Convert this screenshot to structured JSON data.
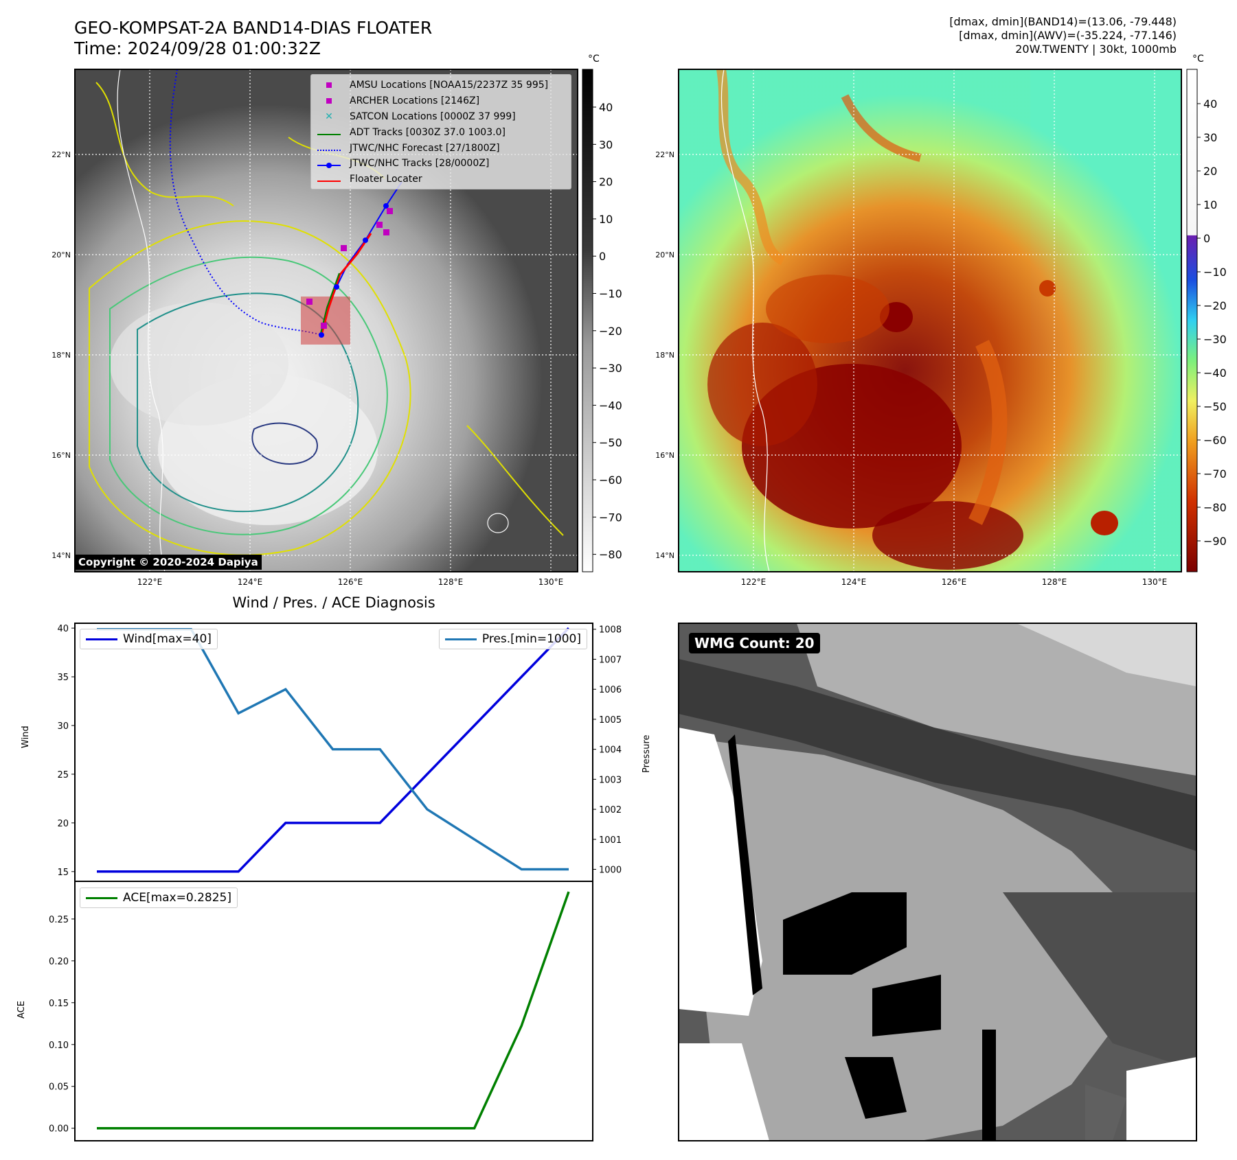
{
  "header": {
    "title_line1": "GEO-KOMPSAT-2A BAND14-DIAS FLOATER",
    "title_line2": "Time: 2024/09/28 01:00:32Z",
    "info_line1": "[dmax, dmin](BAND14)=(13.06, -79.448)",
    "info_line2": "[dmax, dmin](AWV)=(-35.224, -77.146)",
    "info_line3": "20W.TWENTY | 30kt, 1000mb"
  },
  "map_axes": {
    "lat_ticks": [
      "22°N",
      "20°N",
      "18°N",
      "16°N",
      "14°N"
    ],
    "lon_ticks": [
      "122°E",
      "124°E",
      "126°E",
      "128°E",
      "130°E"
    ]
  },
  "ir_panel": {
    "colorbar_unit": "°C",
    "colorbar_ticks": [
      "40",
      "30",
      "20",
      "10",
      "0",
      "−10",
      "−20",
      "−30",
      "−40",
      "−50",
      "−60",
      "−70",
      "−80"
    ],
    "copyright": "Copyright © 2020-2024 Dapiya",
    "legend": [
      {
        "label": "AMSU Locations [NOAA15/2237Z 35 995]",
        "color": "#c000c0",
        "marker": "square"
      },
      {
        "label": "ARCHER Locations [2146Z]",
        "color": "#c000c0",
        "marker": "square"
      },
      {
        "label": "SATCON Locations [0000Z 37 999]",
        "color": "#20b0b0",
        "marker": "x"
      },
      {
        "label": "ADT Tracks [0030Z 37.0 1003.0]",
        "color": "#008000",
        "marker": "line"
      },
      {
        "label": "JTWC/NHC Forecast [27/1800Z]",
        "color": "#0000ff",
        "marker": "dotted"
      },
      {
        "label": "JTWC/NHC Tracks [28/0000Z]",
        "color": "#0000ff",
        "marker": "line-dot"
      },
      {
        "label": "Floater Locater",
        "color": "#ff0000",
        "marker": "line"
      }
    ]
  },
  "awv_panel": {
    "colorbar_unit": "°C",
    "colorbar_ticks": [
      "40",
      "30",
      "20",
      "10",
      "0",
      "−10",
      "−20",
      "−30",
      "−40",
      "−50",
      "−60",
      "−70",
      "−80",
      "−90"
    ]
  },
  "wmg_panel": {
    "badge": "WMG Count: 20"
  },
  "chart_data": [
    {
      "type": "line",
      "title": "Wind / Pres. / ACE Diagnosis",
      "ylabel": "Wind",
      "ylabel_right": "Pressure",
      "x": [
        0,
        1,
        2,
        3,
        4,
        5,
        6,
        7,
        8,
        9,
        10
      ],
      "ylim": [
        14,
        40.5
      ],
      "ylim_right": [
        999.6,
        1008.2
      ],
      "yticks": [
        "40",
        "35",
        "30",
        "25",
        "20",
        "15"
      ],
      "yticks_right": [
        "1008",
        "1007",
        "1006",
        "1005",
        "1004",
        "1003",
        "1002",
        "1001",
        "1000"
      ],
      "series": [
        {
          "name": "Wind[max=40]",
          "axis": "left",
          "color": "#0000dd",
          "values": [
            15,
            15,
            15,
            15,
            20,
            20,
            20,
            25,
            30,
            35,
            40
          ]
        },
        {
          "name": "Pres.[min=1000]",
          "axis": "right",
          "color": "#1f77b4",
          "values": [
            1008,
            1008,
            1008,
            1005.2,
            1006,
            1004,
            1004,
            1002,
            1001,
            1000,
            1000
          ]
        }
      ],
      "legend": [
        "top-left",
        "top-right"
      ]
    },
    {
      "type": "line",
      "ylabel": "ACE",
      "x": [
        0,
        1,
        2,
        3,
        4,
        5,
        6,
        7,
        8,
        9,
        10
      ],
      "ylim": [
        -0.015,
        0.295
      ],
      "yticks": [
        "0.25",
        "0.20",
        "0.15",
        "0.10",
        "0.05",
        "0.00"
      ],
      "series": [
        {
          "name": "ACE[max=0.2825]",
          "color": "#008000",
          "values": [
            0,
            0,
            0,
            0,
            0,
            0,
            0,
            0,
            0,
            0.1225,
            0.2825
          ]
        }
      ],
      "legend": "top-left"
    }
  ]
}
